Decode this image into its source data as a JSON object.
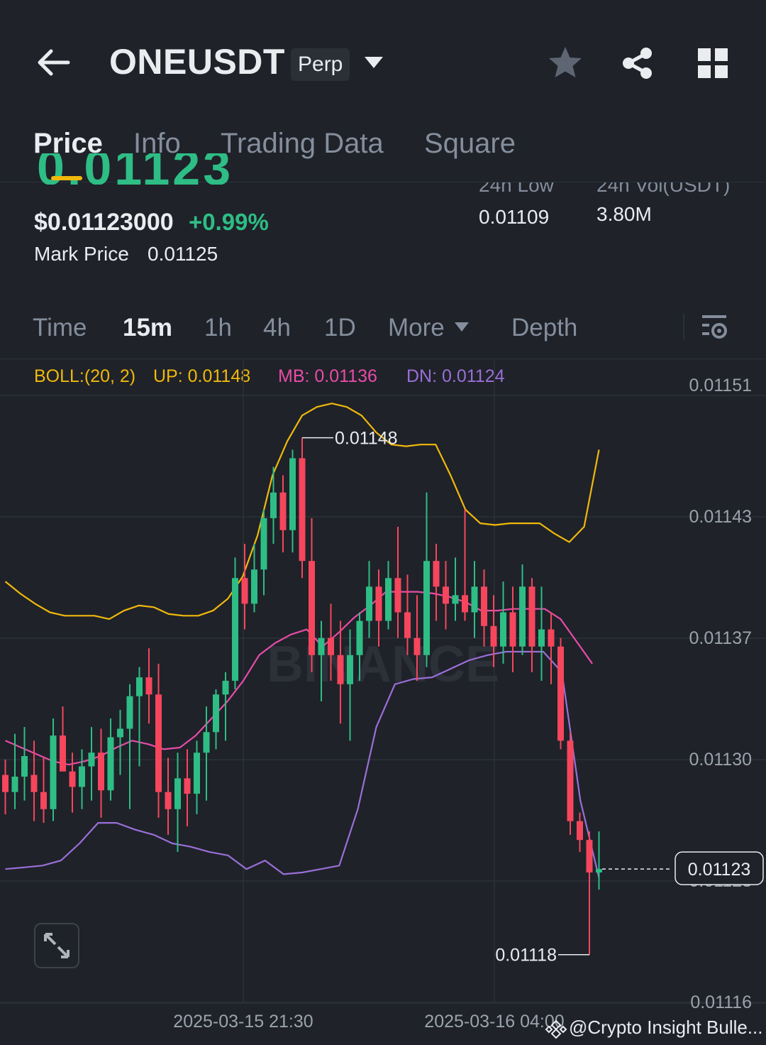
{
  "header": {
    "symbol": "ONEUSDT",
    "contract_type": "Perp",
    "icons": [
      "back-arrow-icon",
      "dropdown-caret-icon",
      "star-icon",
      "share-icon",
      "grid-icon"
    ]
  },
  "tabs": [
    {
      "label": "Price",
      "active": true
    },
    {
      "label": "Info",
      "active": false
    },
    {
      "label": "Trading Data",
      "active": false
    },
    {
      "label": "Square",
      "active": false
    }
  ],
  "price_block": {
    "last_price_partial": "0.01123",
    "usd_price": "$0.01123000",
    "change_pct": "+0.99%",
    "mark_price_label": "Mark Price",
    "mark_price_value": "0.01125",
    "low_24h_label": "24h Low",
    "low_24h_value": "0.01109",
    "vol_24h_label": "24h Vol(USDT)",
    "vol_24h_value": "3.80M"
  },
  "intervals": {
    "items": [
      "Time",
      "15m",
      "1h",
      "4h",
      "1D",
      "More",
      "Depth"
    ],
    "active": "15m",
    "settings_icon": "chart-settings-icon"
  },
  "indicator": {
    "name": "BOLL:(20, 2)",
    "up": "UP: 0.01148",
    "mb": "MB: 0.01136",
    "dn": "DN: 0.01124",
    "colors": {
      "up": "#f0b90b",
      "mb": "#e74ca7",
      "dn": "#9a6fd8",
      "bull": "#2ebd85",
      "bear": "#f6465d"
    }
  },
  "chart_data": {
    "type": "candlestick",
    "y_ticks": [
      "0.01151",
      "0.01143",
      "0.01137",
      "0.01130",
      "0.01123",
      "0.01116"
    ],
    "ylim": [
      0.011155,
      0.011515
    ],
    "x_ticks": [
      "2025-03-15 21:30",
      "2025-03-16 04:00"
    ],
    "current_price_label": "0.01123",
    "high_annotation": "0.01148",
    "low_annotation": "0.01118",
    "watermark_text": "BINANCE",
    "candles": [
      {
        "o": 0.011285,
        "h": 0.011294,
        "l": 0.011262,
        "c": 0.011275
      },
      {
        "o": 0.011275,
        "h": 0.011309,
        "l": 0.011265,
        "c": 0.011284
      },
      {
        "o": 0.011284,
        "h": 0.011313,
        "l": 0.01127,
        "c": 0.011296
      },
      {
        "o": 0.011285,
        "h": 0.011305,
        "l": 0.011258,
        "c": 0.011275
      },
      {
        "o": 0.011275,
        "h": 0.011295,
        "l": 0.011257,
        "c": 0.011265
      },
      {
        "o": 0.011265,
        "h": 0.011318,
        "l": 0.011258,
        "c": 0.011308
      },
      {
        "o": 0.011308,
        "h": 0.011325,
        "l": 0.01129,
        "c": 0.011287
      },
      {
        "o": 0.011287,
        "h": 0.011298,
        "l": 0.011263,
        "c": 0.011278
      },
      {
        "o": 0.011278,
        "h": 0.0113,
        "l": 0.011265,
        "c": 0.01129
      },
      {
        "o": 0.01129,
        "h": 0.011313,
        "l": 0.01127,
        "c": 0.011298
      },
      {
        "o": 0.011298,
        "h": 0.011312,
        "l": 0.01126,
        "c": 0.011276
      },
      {
        "o": 0.011276,
        "h": 0.011318,
        "l": 0.01127,
        "c": 0.011307
      },
      {
        "o": 0.011307,
        "h": 0.011323,
        "l": 0.011285,
        "c": 0.011312
      },
      {
        "o": 0.011312,
        "h": 0.011338,
        "l": 0.011265,
        "c": 0.011331
      },
      {
        "o": 0.011331,
        "h": 0.011348,
        "l": 0.01129,
        "c": 0.011342
      },
      {
        "o": 0.011342,
        "h": 0.011359,
        "l": 0.011315,
        "c": 0.011332
      },
      {
        "o": 0.011332,
        "h": 0.01135,
        "l": 0.01126,
        "c": 0.011275
      },
      {
        "o": 0.011275,
        "h": 0.011295,
        "l": 0.01125,
        "c": 0.011265
      },
      {
        "o": 0.011265,
        "h": 0.011298,
        "l": 0.01124,
        "c": 0.011283
      },
      {
        "o": 0.011283,
        "h": 0.0113,
        "l": 0.011255,
        "c": 0.011274
      },
      {
        "o": 0.011274,
        "h": 0.011305,
        "l": 0.011262,
        "c": 0.011298
      },
      {
        "o": 0.011298,
        "h": 0.011325,
        "l": 0.01127,
        "c": 0.01131
      },
      {
        "o": 0.01131,
        "h": 0.011335,
        "l": 0.0113,
        "c": 0.011332
      },
      {
        "o": 0.011332,
        "h": 0.011345,
        "l": 0.011305,
        "c": 0.01134
      },
      {
        "o": 0.01134,
        "h": 0.011412,
        "l": 0.011335,
        "c": 0.0114
      },
      {
        "o": 0.0114,
        "h": 0.01142,
        "l": 0.01137,
        "c": 0.011385
      },
      {
        "o": 0.011385,
        "h": 0.01142,
        "l": 0.01138,
        "c": 0.011405
      },
      {
        "o": 0.011405,
        "h": 0.01144,
        "l": 0.01139,
        "c": 0.011435
      },
      {
        "o": 0.011435,
        "h": 0.011465,
        "l": 0.01142,
        "c": 0.01145
      },
      {
        "o": 0.01145,
        "h": 0.01146,
        "l": 0.011415,
        "c": 0.011428
      },
      {
        "o": 0.011428,
        "h": 0.011475,
        "l": 0.011415,
        "c": 0.01147
      },
      {
        "o": 0.01147,
        "h": 0.011482,
        "l": 0.0114,
        "c": 0.01141
      },
      {
        "o": 0.01141,
        "h": 0.011435,
        "l": 0.011345,
        "c": 0.011355
      },
      {
        "o": 0.011355,
        "h": 0.011375,
        "l": 0.011328,
        "c": 0.011365
      },
      {
        "o": 0.011365,
        "h": 0.011385,
        "l": 0.01134,
        "c": 0.011355
      },
      {
        "o": 0.011355,
        "h": 0.011375,
        "l": 0.011315,
        "c": 0.011338
      },
      {
        "o": 0.011338,
        "h": 0.01137,
        "l": 0.011305,
        "c": 0.011355
      },
      {
        "o": 0.011355,
        "h": 0.01138,
        "l": 0.01134,
        "c": 0.011375
      },
      {
        "o": 0.011375,
        "h": 0.01141,
        "l": 0.011365,
        "c": 0.011395
      },
      {
        "o": 0.011395,
        "h": 0.011405,
        "l": 0.01136,
        "c": 0.011375
      },
      {
        "o": 0.011375,
        "h": 0.01141,
        "l": 0.01137,
        "c": 0.0114
      },
      {
        "o": 0.0114,
        "h": 0.01143,
        "l": 0.011365,
        "c": 0.01138
      },
      {
        "o": 0.01138,
        "h": 0.011402,
        "l": 0.011355,
        "c": 0.011365
      },
      {
        "o": 0.011365,
        "h": 0.01139,
        "l": 0.01134,
        "c": 0.011355
      },
      {
        "o": 0.011355,
        "h": 0.01145,
        "l": 0.011348,
        "c": 0.01141
      },
      {
        "o": 0.01141,
        "h": 0.01142,
        "l": 0.011375,
        "c": 0.011395
      },
      {
        "o": 0.011395,
        "h": 0.01141,
        "l": 0.01137,
        "c": 0.011385
      },
      {
        "o": 0.011385,
        "h": 0.011412,
        "l": 0.011375,
        "c": 0.01139
      },
      {
        "o": 0.01139,
        "h": 0.01144,
        "l": 0.011375,
        "c": 0.01138
      },
      {
        "o": 0.01138,
        "h": 0.01141,
        "l": 0.011365,
        "c": 0.011395
      },
      {
        "o": 0.011395,
        "h": 0.011405,
        "l": 0.01136,
        "c": 0.011372
      },
      {
        "o": 0.011372,
        "h": 0.01139,
        "l": 0.011348,
        "c": 0.01136
      },
      {
        "o": 0.01136,
        "h": 0.011398,
        "l": 0.01135,
        "c": 0.01138
      },
      {
        "o": 0.01138,
        "h": 0.011395,
        "l": 0.011345,
        "c": 0.01136
      },
      {
        "o": 0.01136,
        "h": 0.011408,
        "l": 0.011355,
        "c": 0.011395
      },
      {
        "o": 0.011395,
        "h": 0.0114,
        "l": 0.011345,
        "c": 0.01136
      },
      {
        "o": 0.01136,
        "h": 0.011395,
        "l": 0.01134,
        "c": 0.01137
      },
      {
        "o": 0.01137,
        "h": 0.01138,
        "l": 0.011338,
        "c": 0.01136
      },
      {
        "o": 0.01136,
        "h": 0.011365,
        "l": 0.0113,
        "c": 0.011305
      },
      {
        "o": 0.011305,
        "h": 0.01131,
        "l": 0.01125,
        "c": 0.011258
      },
      {
        "o": 0.011258,
        "h": 0.011263,
        "l": 0.01124,
        "c": 0.011247
      },
      {
        "o": 0.011247,
        "h": 0.011252,
        "l": 0.01118,
        "c": 0.011228
      },
      {
        "o": 0.011228,
        "h": 0.011252,
        "l": 0.011218,
        "c": 0.01123
      }
    ],
    "boll_up": [
      0.011398,
      0.011391,
      0.011385,
      0.01138,
      0.011378,
      0.011378,
      0.011378,
      0.011376,
      0.011381,
      0.011384,
      0.011383,
      0.011379,
      0.011378,
      0.011378,
      0.011381,
      0.011388,
      0.011401,
      0.011425,
      0.01146,
      0.01148,
      0.011495,
      0.0115,
      0.011502,
      0.0115,
      0.011495,
      0.011485,
      0.011478,
      0.011477,
      0.011478,
      0.011478,
      0.01146,
      0.01144,
      0.011432,
      0.011431,
      0.011432,
      0.011432,
      0.011432,
      0.011426,
      0.011421,
      0.01143,
      0.011475
    ],
    "boll_mid": [
      0.011305,
      0.011301,
      0.011297,
      0.011293,
      0.011291,
      0.011293,
      0.011296,
      0.011301,
      0.011305,
      0.011303,
      0.0113,
      0.011301,
      0.011308,
      0.011318,
      0.011328,
      0.01134,
      0.011355,
      0.011362,
      0.011367,
      0.01137,
      0.01136,
      0.011368,
      0.011377,
      0.011384,
      0.011392,
      0.011392,
      0.011392,
      0.011391,
      0.011389,
      0.011386,
      0.011381,
      0.011381,
      0.011382,
      0.011382,
      0.011382,
      0.011376,
      0.011363,
      0.01135
    ],
    "boll_dn": [
      0.01123,
      0.011231,
      0.011232,
      0.011235,
      0.011245,
      0.011257,
      0.011257,
      0.011253,
      0.01125,
      0.011245,
      0.011243,
      0.01124,
      0.011238,
      0.01123,
      0.011235,
      0.011227,
      0.011228,
      0.01123,
      0.011232,
      0.011265,
      0.011313,
      0.011338,
      0.011341,
      0.011342,
      0.011347,
      0.011352,
      0.011355,
      0.011357,
      0.011357,
      0.011357,
      0.011345,
      0.01127,
      0.011225
    ]
  },
  "footer": {
    "watermark_text": "@Crypto Insight Bulle..."
  }
}
